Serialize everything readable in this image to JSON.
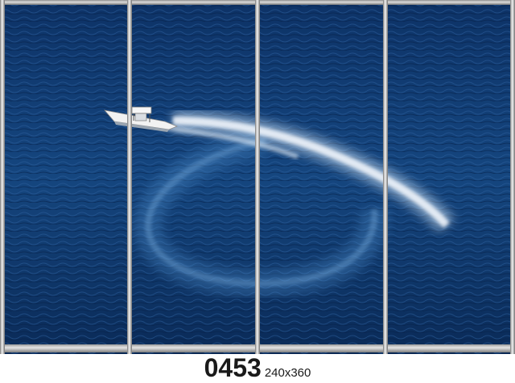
{
  "product": {
    "code": "0453",
    "size": "240x360"
  },
  "colors": {
    "sea_dark": "#0b2d5c",
    "sea_mid": "#174a86",
    "foam": "#e8f1fb",
    "frame": "#bdbdbd"
  },
  "panels": [
    "panel-1",
    "panel-2",
    "panel-3",
    "panel-4"
  ]
}
